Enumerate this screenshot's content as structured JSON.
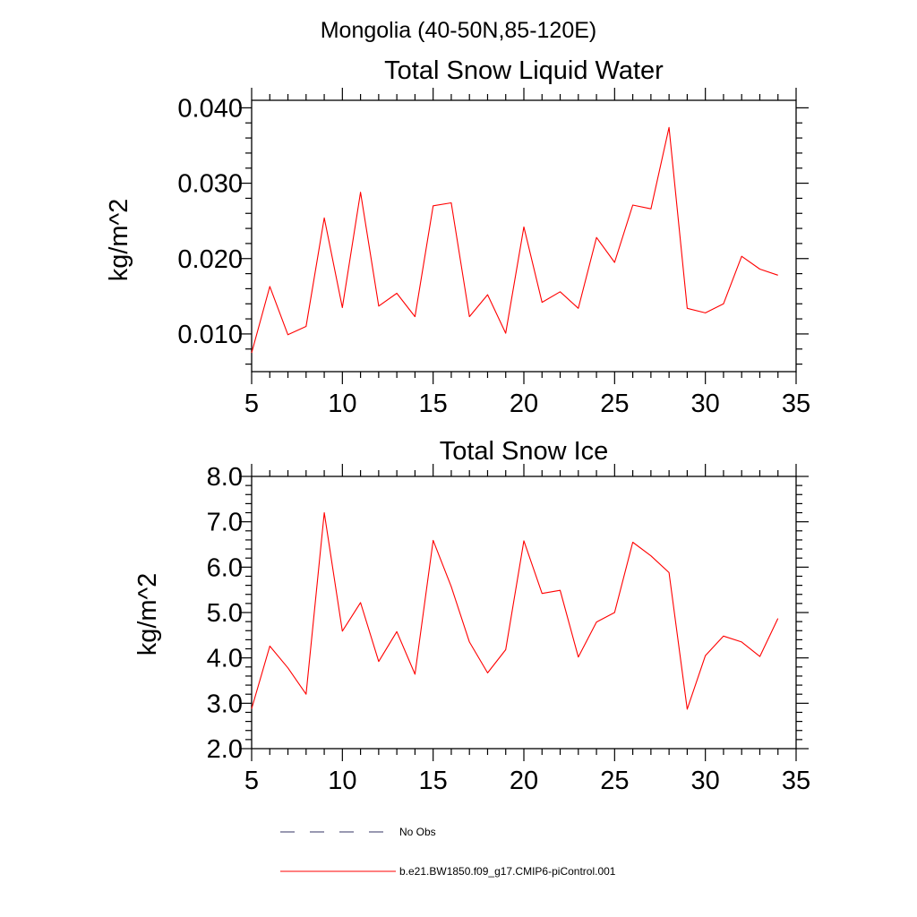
{
  "suptitle": "Mongolia (40-50N,85-120E)",
  "chart_data": [
    {
      "type": "line",
      "title": "Total Snow Liquid Water",
      "xlabel": "",
      "ylabel": "kg/m^2",
      "xlim": [
        5,
        35
      ],
      "ylim": [
        0.005,
        0.041
      ],
      "x_ticks": [
        5,
        10,
        15,
        20,
        25,
        30,
        35
      ],
      "x_tick_labels": [
        "5",
        "10",
        "15",
        "20",
        "25",
        "30",
        "35"
      ],
      "y_ticks": [
        0.01,
        0.02,
        0.03,
        0.04
      ],
      "y_tick_labels": [
        "0.010",
        "0.020",
        "0.030",
        "0.040"
      ],
      "grid": false,
      "series": [
        {
          "color": "#ff0000",
          "x": [
            5,
            6,
            7,
            8,
            9,
            10,
            11,
            12,
            13,
            14,
            15,
            16,
            17,
            18,
            19,
            20,
            21,
            22,
            23,
            24,
            25,
            26,
            27,
            28,
            29,
            30,
            31,
            32,
            33,
            34
          ],
          "values": [
            0.0075,
            0.0163,
            0.0099,
            0.011,
            0.0254,
            0.0135,
            0.0288,
            0.0137,
            0.0154,
            0.0123,
            0.027,
            0.0274,
            0.0123,
            0.0152,
            0.0101,
            0.0242,
            0.0142,
            0.0156,
            0.0134,
            0.0228,
            0.0195,
            0.0271,
            0.0266,
            0.0374,
            0.0134,
            0.0128,
            0.014,
            0.0203,
            0.0186,
            0.0178
          ]
        }
      ]
    },
    {
      "type": "line",
      "title": "Total Snow Ice",
      "xlabel": "",
      "ylabel": "kg/m^2",
      "xlim": [
        5,
        35
      ],
      "ylim": [
        2.0,
        8.0
      ],
      "x_ticks": [
        5,
        10,
        15,
        20,
        25,
        30,
        35
      ],
      "x_tick_labels": [
        "5",
        "10",
        "15",
        "20",
        "25",
        "30",
        "35"
      ],
      "y_ticks": [
        2.0,
        3.0,
        4.0,
        5.0,
        6.0,
        7.0,
        8.0
      ],
      "y_tick_labels": [
        "2.0",
        "3.0",
        "4.0",
        "5.0",
        "6.0",
        "7.0",
        "8.0"
      ],
      "grid": false,
      "series": [
        {
          "color": "#ff0000",
          "x": [
            5,
            6,
            7,
            8,
            9,
            10,
            11,
            12,
            13,
            14,
            15,
            16,
            17,
            18,
            19,
            20,
            21,
            22,
            23,
            24,
            25,
            26,
            27,
            28,
            29,
            30,
            31,
            32,
            33,
            34
          ],
          "values": [
            2.88,
            4.26,
            3.78,
            3.2,
            7.2,
            4.59,
            5.22,
            3.92,
            4.58,
            3.64,
            6.59,
            5.57,
            4.35,
            3.67,
            4.18,
            6.58,
            5.42,
            5.49,
            4.02,
            4.79,
            5.0,
            6.55,
            6.25,
            5.88,
            2.87,
            4.05,
            4.48,
            4.35,
            4.03,
            4.87
          ]
        }
      ]
    }
  ],
  "legend": {
    "placement": "bottom",
    "items": [
      {
        "label": "No Obs",
        "color": "#333366",
        "style": "dashed"
      },
      {
        "label": "b.e21.BW1850.f09_g17.CMIP6-piControl.001",
        "color": "#ff0000",
        "style": "solid"
      }
    ]
  }
}
